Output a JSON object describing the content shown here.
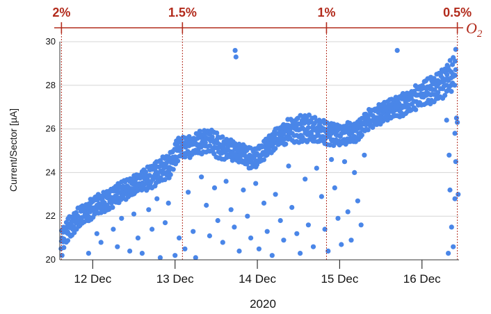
{
  "chart_data": {
    "type": "scatter",
    "ylabel": "Current/Sector [µA]",
    "xlabel": "2020",
    "ylim": [
      20,
      30
    ],
    "xlim": [
      11.6,
      16.45
    ],
    "yticks": [
      20,
      22,
      24,
      26,
      28,
      30
    ],
    "xticks": [
      {
        "value": 12,
        "label": "12 Dec"
      },
      {
        "value": 13,
        "label": "13 Dec"
      },
      {
        "value": 14,
        "label": "14 Dec"
      },
      {
        "value": 15,
        "label": "15 Dec"
      },
      {
        "value": 16,
        "label": "16 Dec"
      }
    ],
    "grid": true,
    "marker_color": "#4a86e8",
    "accent_color": "#b22b1c",
    "main_band": [
      [
        11.62,
        20.2,
        21.4
      ],
      [
        11.7,
        20.8,
        21.9
      ],
      [
        11.8,
        21.3,
        22.3
      ],
      [
        11.9,
        21.6,
        22.6
      ],
      [
        12.0,
        21.9,
        22.9
      ],
      [
        12.2,
        22.3,
        23.3
      ],
      [
        12.4,
        22.7,
        23.7
      ],
      [
        12.6,
        23.1,
        24.1
      ],
      [
        12.8,
        23.4,
        24.6
      ],
      [
        12.95,
        23.8,
        25.0
      ],
      [
        13.05,
        24.6,
        25.7
      ],
      [
        13.2,
        24.7,
        25.7
      ],
      [
        13.4,
        24.9,
        26.1
      ],
      [
        13.55,
        24.6,
        25.7
      ],
      [
        13.75,
        24.5,
        25.4
      ],
      [
        13.95,
        24.1,
        25.1
      ],
      [
        14.05,
        24.4,
        25.4
      ],
      [
        14.2,
        25.0,
        26.0
      ],
      [
        14.4,
        25.4,
        26.5
      ],
      [
        14.6,
        25.3,
        26.7
      ],
      [
        14.8,
        25.3,
        26.4
      ],
      [
        15.0,
        25.2,
        26.2
      ],
      [
        15.2,
        25.4,
        26.4
      ],
      [
        15.35,
        25.9,
        26.9
      ],
      [
        15.6,
        26.4,
        27.4
      ],
      [
        15.8,
        26.6,
        27.7
      ],
      [
        16.0,
        27.0,
        28.2
      ],
      [
        16.2,
        27.3,
        28.6
      ],
      [
        16.35,
        27.6,
        29.2
      ],
      [
        16.43,
        28.2,
        29.9
      ]
    ],
    "outliers": [
      [
        13.73,
        29.6
      ],
      [
        13.74,
        29.3
      ],
      [
        15.7,
        29.6
      ],
      [
        11.95,
        20.3
      ],
      [
        12.1,
        20.8
      ],
      [
        12.05,
        21.2
      ],
      [
        12.25,
        21.4
      ],
      [
        12.3,
        20.6
      ],
      [
        12.35,
        21.9
      ],
      [
        12.45,
        20.4
      ],
      [
        12.5,
        22.1
      ],
      [
        12.55,
        21.0
      ],
      [
        12.6,
        20.3
      ],
      [
        12.68,
        22.3
      ],
      [
        12.72,
        21.4
      ],
      [
        12.78,
        22.8
      ],
      [
        12.82,
        20.1
      ],
      [
        12.88,
        21.7
      ],
      [
        12.92,
        22.6
      ],
      [
        13.0,
        20.2
      ],
      [
        13.05,
        21.0
      ],
      [
        13.12,
        20.5
      ],
      [
        13.16,
        23.1
      ],
      [
        13.22,
        21.3
      ],
      [
        13.25,
        20.1
      ],
      [
        13.32,
        23.8
      ],
      [
        13.38,
        22.5
      ],
      [
        13.42,
        21.1
      ],
      [
        13.48,
        23.3
      ],
      [
        13.52,
        21.8
      ],
      [
        13.58,
        20.8
      ],
      [
        13.62,
        23.6
      ],
      [
        13.68,
        22.3
      ],
      [
        13.72,
        21.5
      ],
      [
        13.78,
        20.4
      ],
      [
        13.83,
        23.2
      ],
      [
        13.88,
        22.0
      ],
      [
        13.92,
        21.0
      ],
      [
        13.98,
        23.5
      ],
      [
        14.02,
        20.5
      ],
      [
        14.08,
        22.6
      ],
      [
        14.12,
        21.3
      ],
      [
        14.18,
        20.2
      ],
      [
        14.22,
        23.0
      ],
      [
        14.28,
        21.8
      ],
      [
        14.32,
        20.9
      ],
      [
        14.38,
        24.3
      ],
      [
        14.42,
        22.4
      ],
      [
        14.48,
        21.2
      ],
      [
        14.52,
        20.3
      ],
      [
        14.58,
        23.7
      ],
      [
        14.62,
        21.6
      ],
      [
        14.68,
        20.6
      ],
      [
        14.72,
        24.2
      ],
      [
        14.78,
        22.9
      ],
      [
        14.82,
        21.4
      ],
      [
        14.86,
        20.4
      ],
      [
        14.9,
        24.6
      ],
      [
        14.94,
        23.3
      ],
      [
        14.98,
        21.9
      ],
      [
        15.02,
        20.7
      ],
      [
        15.06,
        24.5
      ],
      [
        15.1,
        22.2
      ],
      [
        15.14,
        20.9
      ],
      [
        15.18,
        24.0
      ],
      [
        15.22,
        22.7
      ],
      [
        15.26,
        21.6
      ],
      [
        15.3,
        24.8
      ],
      [
        16.33,
        24.8
      ],
      [
        16.34,
        23.2
      ],
      [
        16.36,
        21.5
      ],
      [
        16.38,
        20.6
      ],
      [
        16.4,
        22.8
      ],
      [
        16.41,
        24.5
      ],
      [
        16.42,
        26.5
      ],
      [
        16.43,
        26.3
      ],
      [
        16.4,
        25.8
      ],
      [
        16.3,
        26.4
      ],
      [
        16.32,
        20.3
      ],
      [
        16.44,
        23.0
      ]
    ]
  },
  "o2_axis": {
    "label": "O",
    "subscript": "2",
    "markers": [
      {
        "value": 11.62,
        "label": "2%"
      },
      {
        "value": 13.09,
        "label": "1.5%"
      },
      {
        "value": 14.84,
        "label": "1%"
      },
      {
        "value": 16.43,
        "label": "0.5%"
      }
    ]
  }
}
